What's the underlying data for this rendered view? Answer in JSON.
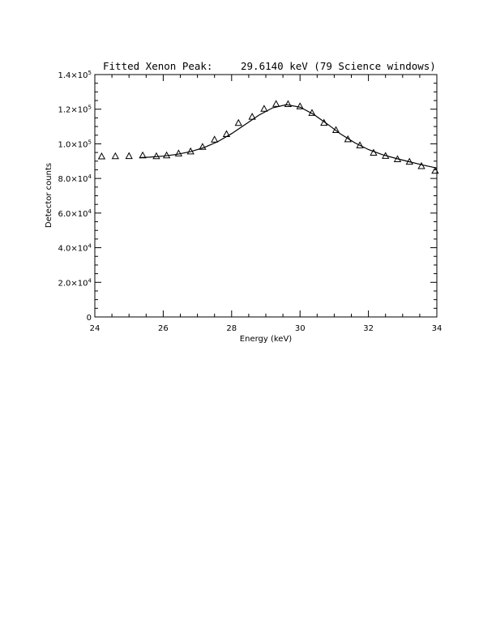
{
  "chart_data": {
    "type": "scatter",
    "title_left": "Fitted Xenon Peak:",
    "title_right": "29.6140 keV (79 Science windows)",
    "xlabel": "Energy (keV)",
    "ylabel": "Detector counts",
    "xlim": [
      24,
      34
    ],
    "ylim": [
      0,
      140000
    ],
    "x_ticks": [
      {
        "value": 24,
        "label": "24"
      },
      {
        "value": 26,
        "label": "26"
      },
      {
        "value": 28,
        "label": "28"
      },
      {
        "value": 30,
        "label": "30"
      },
      {
        "value": 32,
        "label": "32"
      },
      {
        "value": 34,
        "label": "34"
      }
    ],
    "y_ticks": [
      {
        "value": 0,
        "mantissa": "0",
        "exp": ""
      },
      {
        "value": 20000,
        "mantissa": "2.0×10",
        "exp": "4"
      },
      {
        "value": 40000,
        "mantissa": "4.0×10",
        "exp": "4"
      },
      {
        "value": 60000,
        "mantissa": "6.0×10",
        "exp": "4"
      },
      {
        "value": 80000,
        "mantissa": "8.0×10",
        "exp": "4"
      },
      {
        "value": 100000,
        "mantissa": "1.0×10",
        "exp": "5"
      },
      {
        "value": 120000,
        "mantissa": "1.2×10",
        "exp": "5"
      },
      {
        "value": 140000,
        "mantissa": "1.4×10",
        "exp": "5"
      }
    ],
    "series": [
      {
        "marker": "triangle",
        "x": [
          24.2,
          24.6,
          25.0,
          25.4,
          25.8,
          26.1,
          26.45,
          26.8,
          27.15,
          27.5,
          27.85,
          28.2,
          28.6,
          28.95,
          29.3,
          29.65,
          30.0,
          30.35,
          30.7,
          31.05,
          31.4,
          31.75,
          32.15,
          32.5,
          32.85,
          33.2,
          33.55,
          33.95
        ],
        "y": [
          92700,
          92800,
          92900,
          93300,
          92800,
          93300,
          94400,
          95600,
          98200,
          102400,
          105600,
          112000,
          115600,
          120200,
          123000,
          122900,
          121600,
          117800,
          112100,
          107900,
          102600,
          99100,
          94800,
          93000,
          91100,
          89600,
          87100,
          84400
        ]
      },
      {
        "style": "line",
        "x": [
          25.3,
          25.6,
          26.0,
          26.4,
          26.8,
          27.2,
          27.6,
          28.0,
          28.4,
          28.8,
          29.2,
          29.6,
          30.0,
          30.4,
          30.8,
          31.2,
          31.6,
          32.0,
          32.4,
          32.8,
          33.2,
          33.6,
          34.0
        ],
        "y": [
          92000,
          92300,
          92900,
          93900,
          95500,
          97900,
          101300,
          105900,
          111200,
          116600,
          120800,
          122600,
          121200,
          117000,
          111400,
          105500,
          100600,
          96700,
          93800,
          91600,
          89600,
          87700,
          86000
        ]
      }
    ],
    "grid": false,
    "legend": "none"
  }
}
